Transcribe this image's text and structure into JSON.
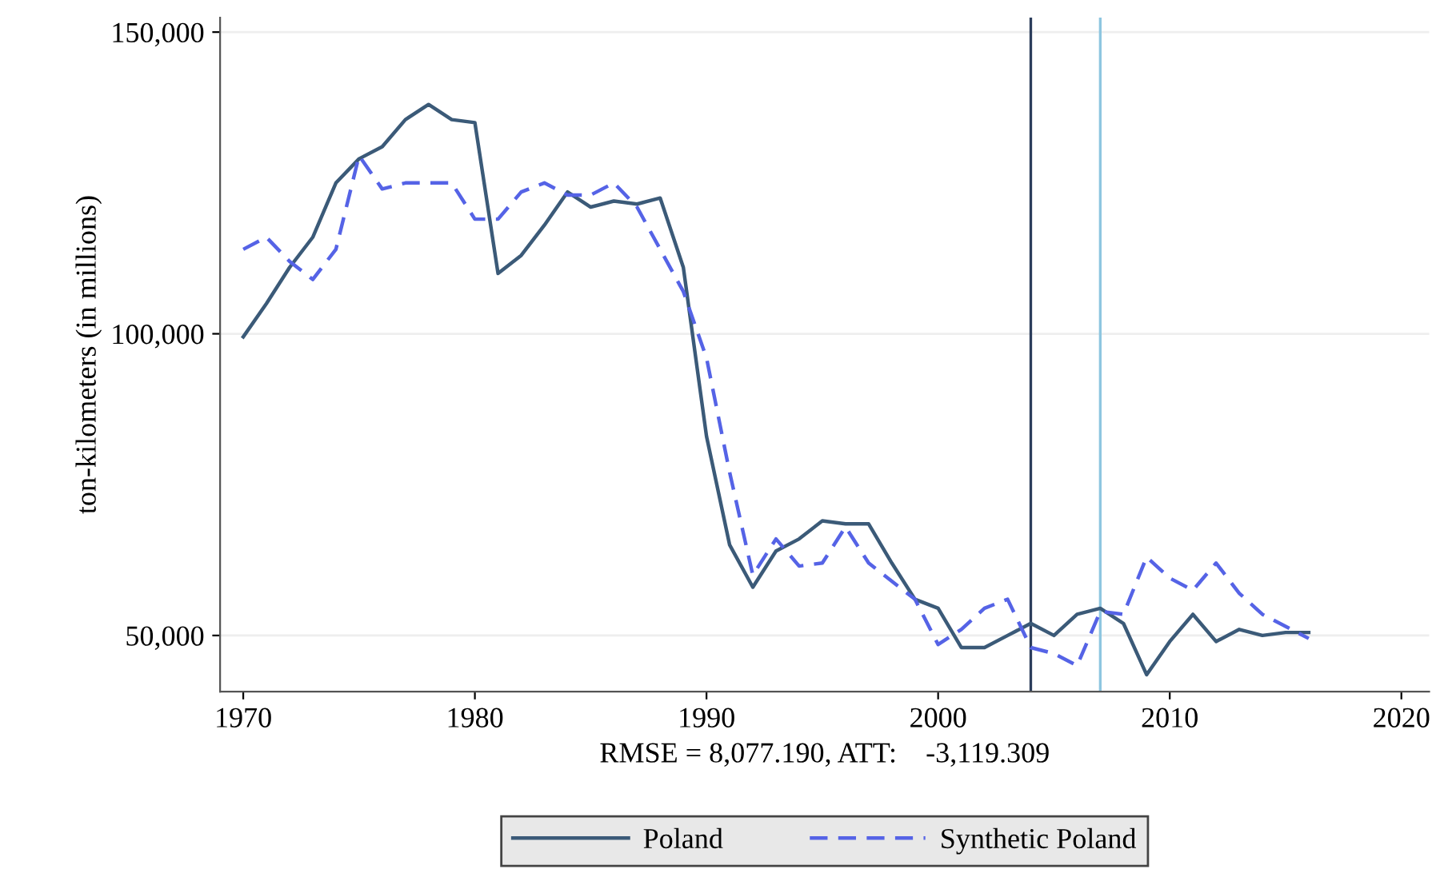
{
  "chart_data": {
    "type": "line",
    "xlabel": "RMSE = 8,077.190, ATT:    -3,119.309",
    "ylabel": "ton-kilometers (in millions)",
    "x": [
      1970,
      1971,
      1972,
      1973,
      1974,
      1975,
      1976,
      1977,
      1978,
      1979,
      1980,
      1981,
      1982,
      1983,
      1984,
      1985,
      1986,
      1987,
      1988,
      1989,
      1990,
      1991,
      1992,
      1993,
      1994,
      1995,
      1996,
      1997,
      1998,
      1999,
      2000,
      2001,
      2002,
      2003,
      2004,
      2005,
      2006,
      2007,
      2008,
      2009,
      2010,
      2011,
      2012,
      2013,
      2014,
      2015,
      2016
    ],
    "series": [
      {
        "name": "Poland",
        "color": "#3b5a78",
        "line_style": "solid",
        "values": [
          99500,
          105000,
          111000,
          116000,
          125000,
          129000,
          131000,
          135500,
          138000,
          135500,
          135000,
          110000,
          113000,
          118000,
          123500,
          121000,
          122000,
          121500,
          122500,
          111000,
          83000,
          65000,
          58000,
          64000,
          66000,
          69000,
          68500,
          68500,
          62000,
          56000,
          54500,
          48000,
          48000,
          50000,
          52000,
          50000,
          53500,
          54500,
          52000,
          43500,
          49000,
          53500,
          49000,
          51000,
          50000,
          50500,
          50500
        ]
      },
      {
        "name": "Synthetic Poland",
        "color": "#5563e6",
        "line_style": "dashed",
        "values": [
          114000,
          116000,
          112000,
          109000,
          114000,
          129500,
          124000,
          125000,
          125000,
          125000,
          119000,
          119000,
          123500,
          125000,
          123000,
          123000,
          125000,
          121000,
          114000,
          107000,
          96000,
          77000,
          60000,
          66000,
          61500,
          62000,
          68000,
          62000,
          59000,
          56000,
          48500,
          51000,
          54500,
          56000,
          48000,
          47000,
          45000,
          54000,
          53500,
          63000,
          59500,
          57500,
          62000,
          57000,
          53500,
          51500,
          49500
        ]
      }
    ],
    "ref_lines": [
      {
        "axis": "x",
        "value": 2004,
        "color": "#2c3e5c"
      },
      {
        "axis": "x",
        "value": 2007,
        "color": "#8ec6e0"
      }
    ],
    "xlim": [
      1969,
      2021.2
    ],
    "xticks": [
      1970,
      1980,
      1990,
      2000,
      2010,
      2020
    ],
    "ylim": [
      40700,
      152400
    ],
    "yticks": [
      {
        "value": 50000,
        "label": "50,000"
      },
      {
        "value": 100000,
        "label": "100,000"
      },
      {
        "value": 150000,
        "label": "150,000"
      }
    ],
    "grid": "y",
    "legend": "bottom"
  }
}
